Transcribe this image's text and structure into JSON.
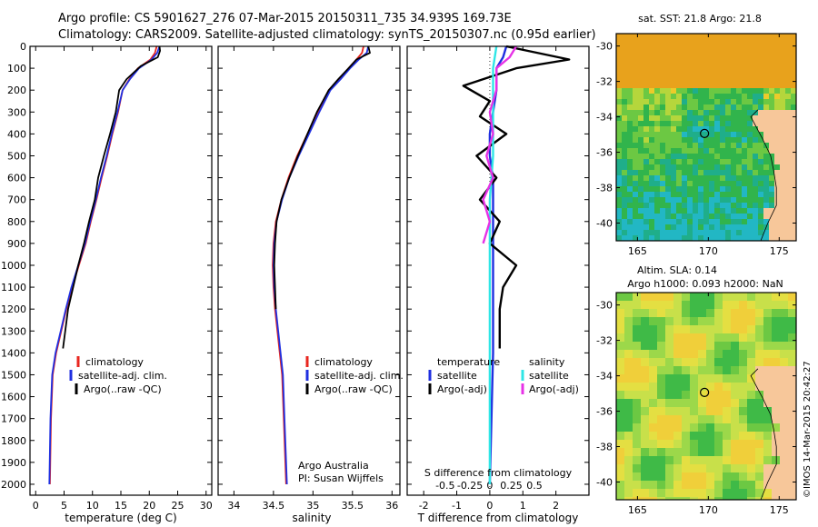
{
  "header": {
    "line1": "Argo profile: CS 5901627_276 07-Mar-2015 20150311_735 34.939S 169.73E",
    "line2": "Climatology: CARS2009. Satellite-adjusted climatology: synTS_20150307.nc (0.95d earlier)"
  },
  "credit": "©IMOS 14-Mar-2015 20:42:27",
  "colors": {
    "climatology": "#e8261f",
    "satellite": "#1f2fe0",
    "argo": "#000000",
    "cyan": "#2fe6e6",
    "magenta": "#e632e6"
  },
  "chart_data": [
    {
      "type": "line",
      "xlabel": "temperature (deg C)",
      "xlim": [
        -1,
        31
      ],
      "ylim": [
        2050,
        0
      ],
      "xticks": [
        0,
        5,
        10,
        15,
        20,
        25,
        30
      ],
      "yticks": [
        0,
        100,
        200,
        300,
        400,
        500,
        600,
        700,
        800,
        900,
        1000,
        1100,
        1200,
        1300,
        1400,
        1500,
        1600,
        1700,
        1800,
        1900,
        2000
      ],
      "legend": [
        "climatology",
        "satellite-adj. clim.",
        "Argo(..raw -QC)"
      ],
      "legend_position": "lower-center",
      "series": [
        {
          "name": "climatology",
          "color": "#e8261f",
          "x": [
            21.3,
            21.0,
            20.2,
            18.0,
            16.5,
            15.3,
            14.5,
            13.5,
            12.6,
            11.6,
            10.7,
            9.7,
            8.8,
            7.6,
            6.4,
            5.4,
            4.5,
            3.6,
            3.0,
            2.7,
            2.5
          ],
          "y": [
            0,
            30,
            60,
            100,
            150,
            200,
            300,
            400,
            500,
            600,
            700,
            800,
            900,
            1000,
            1100,
            1200,
            1300,
            1400,
            1500,
            1700,
            2000
          ]
        },
        {
          "name": "satellite-adj. clim.",
          "color": "#1f2fe0",
          "x": [
            21.8,
            21.4,
            20.4,
            18.2,
            16.6,
            15.3,
            14.4,
            13.4,
            12.5,
            11.5,
            10.6,
            9.6,
            8.7,
            7.5,
            6.3,
            5.3,
            4.4,
            3.5,
            2.9,
            2.6,
            2.4
          ],
          "y": [
            0,
            30,
            60,
            100,
            150,
            200,
            300,
            400,
            500,
            600,
            700,
            800,
            900,
            1000,
            1100,
            1200,
            1300,
            1400,
            1500,
            1700,
            2000
          ]
        },
        {
          "name": "Argo(..raw -QC)",
          "color": "#000000",
          "x": [
            21.8,
            21.9,
            21.5,
            18.5,
            16.0,
            14.7,
            14.1,
            13.1,
            12.0,
            11.0,
            10.4,
            9.4,
            8.5,
            7.5,
            6.6,
            5.7,
            4.8
          ],
          "y": [
            0,
            20,
            50,
            90,
            150,
            200,
            300,
            400,
            500,
            600,
            700,
            800,
            900,
            1000,
            1100,
            1200,
            1380
          ]
        }
      ]
    },
    {
      "type": "line",
      "xlabel": "salinity",
      "xlim": [
        33.8,
        36.1
      ],
      "ylim": [
        2050,
        0
      ],
      "xticks": [
        34,
        34.5,
        35,
        35.5,
        36
      ],
      "legend": [
        "climatology",
        "satellite-adj. clim.",
        "Argo(..raw -QC)"
      ],
      "legend_position": "lower-center",
      "annotation": [
        "Argo Australia",
        "PI: Susan Wijffels"
      ],
      "series": [
        {
          "name": "climatology",
          "color": "#e8261f",
          "x": [
            35.64,
            35.62,
            35.55,
            35.45,
            35.33,
            35.2,
            35.06,
            34.93,
            34.8,
            34.69,
            34.6,
            34.53,
            34.5,
            34.49,
            34.5,
            34.52,
            34.55,
            34.58,
            34.61,
            34.63,
            34.66
          ],
          "y": [
            0,
            30,
            60,
            100,
            150,
            200,
            300,
            400,
            500,
            600,
            700,
            800,
            900,
            1000,
            1100,
            1200,
            1300,
            1400,
            1500,
            1700,
            2000
          ]
        },
        {
          "name": "satellite-adj. clim.",
          "color": "#1f2fe0",
          "x": [
            35.7,
            35.68,
            35.58,
            35.47,
            35.35,
            35.22,
            35.08,
            34.95,
            34.82,
            34.7,
            34.61,
            34.54,
            34.51,
            34.5,
            34.51,
            34.53,
            34.56,
            34.59,
            34.62,
            34.64,
            34.67
          ],
          "y": [
            0,
            30,
            60,
            100,
            150,
            200,
            300,
            400,
            500,
            600,
            700,
            800,
            900,
            1000,
            1100,
            1200,
            1300,
            1400,
            1500,
            1700,
            2000
          ]
        },
        {
          "name": "Argo(..raw -QC)",
          "color": "#000000",
          "x": [
            35.7,
            35.72,
            35.55,
            35.45,
            35.32,
            35.2,
            35.05,
            34.93,
            34.81,
            34.7,
            34.6,
            34.54,
            34.52,
            34.51,
            34.52,
            34.53
          ],
          "y": [
            0,
            30,
            60,
            100,
            150,
            200,
            300,
            400,
            500,
            600,
            700,
            800,
            900,
            1000,
            1100,
            1200
          ]
        }
      ]
    },
    {
      "type": "line",
      "xlabel": "T difference from climatology",
      "top_axis_label": "S difference from climatology",
      "xlim": [
        -2.5,
        3.0
      ],
      "ylim": [
        2050,
        0
      ],
      "xticks": [
        -2,
        -1,
        0,
        1,
        2
      ],
      "s_xticks": [
        "-0.5",
        "-0.25",
        "0",
        "0.25",
        "0.5"
      ],
      "legend_left": {
        "title": "temperature",
        "items": [
          "satellite",
          "Argo(-adj)"
        ]
      },
      "legend_right": {
        "title": "salinity",
        "items": [
          "satellite",
          "Argo(-adj)"
        ]
      },
      "legend_position": "lower-center",
      "series": [
        {
          "name": "temperature satellite",
          "color": "#1f2fe0",
          "x": [
            0.5,
            0.4,
            0.2,
            0.2,
            0.1,
            0.0,
            0.0,
            0.1,
            0.1,
            0.1,
            0.1,
            0.1,
            0.1,
            0.1,
            0.1,
            0.0
          ],
          "y": [
            0,
            50,
            100,
            200,
            300,
            400,
            500,
            600,
            700,
            800,
            900,
            1000,
            1100,
            1200,
            1400,
            2000
          ]
        },
        {
          "name": "temperature Argo(-adj)",
          "color": "#000000",
          "x": [
            0.5,
            2.4,
            0.8,
            -0.8,
            0.0,
            -0.3,
            0.5,
            -0.4,
            0.2,
            -0.3,
            0.3,
            0.0,
            0.8,
            0.4,
            0.3,
            0.3
          ],
          "y": [
            0,
            60,
            100,
            180,
            250,
            320,
            400,
            500,
            600,
            700,
            800,
            900,
            1000,
            1100,
            1200,
            1380
          ]
        },
        {
          "name": "salinity satellite",
          "color": "#2fe6e6",
          "x": [
            0.2,
            0.1,
            0.1,
            0.1,
            0.0,
            0.0,
            0.0,
            0.0,
            0.0,
            0.0
          ],
          "y": [
            0,
            100,
            300,
            500,
            700,
            900,
            1100,
            1400,
            1700,
            2000
          ]
        },
        {
          "name": "salinity Argo(-adj)",
          "color": "#e632e6",
          "x": [
            0.8,
            0.6,
            0.2,
            0.2,
            0.0,
            0.1,
            -0.1,
            0.1,
            -0.2,
            0.0,
            -0.2
          ],
          "y": [
            0,
            50,
            100,
            200,
            300,
            400,
            500,
            600,
            700,
            800,
            900
          ]
        }
      ]
    },
    {
      "type": "heatmap",
      "title": "sat. SST: 21.8 Argo: 21.8",
      "xlim": [
        163.5,
        176.2
      ],
      "ylim": [
        -41,
        -29.3
      ],
      "xticks": [
        165,
        170,
        175
      ],
      "yticks": [
        -30,
        -32,
        -34,
        -36,
        -38,
        -40
      ],
      "marker": {
        "lon": 169.73,
        "lat": -34.939
      }
    },
    {
      "type": "heatmap",
      "title": "Altim. SLA: 0.14",
      "subtitle": "Argo h1000: 0.093 h2000: NaN",
      "xlim": [
        163.5,
        176.2
      ],
      "ylim": [
        -41,
        -29.3
      ],
      "xticks": [
        165,
        170,
        175
      ],
      "yticks": [
        -30,
        -32,
        -34,
        -36,
        -38,
        -40
      ],
      "marker": {
        "lon": 169.73,
        "lat": -34.939
      }
    }
  ]
}
